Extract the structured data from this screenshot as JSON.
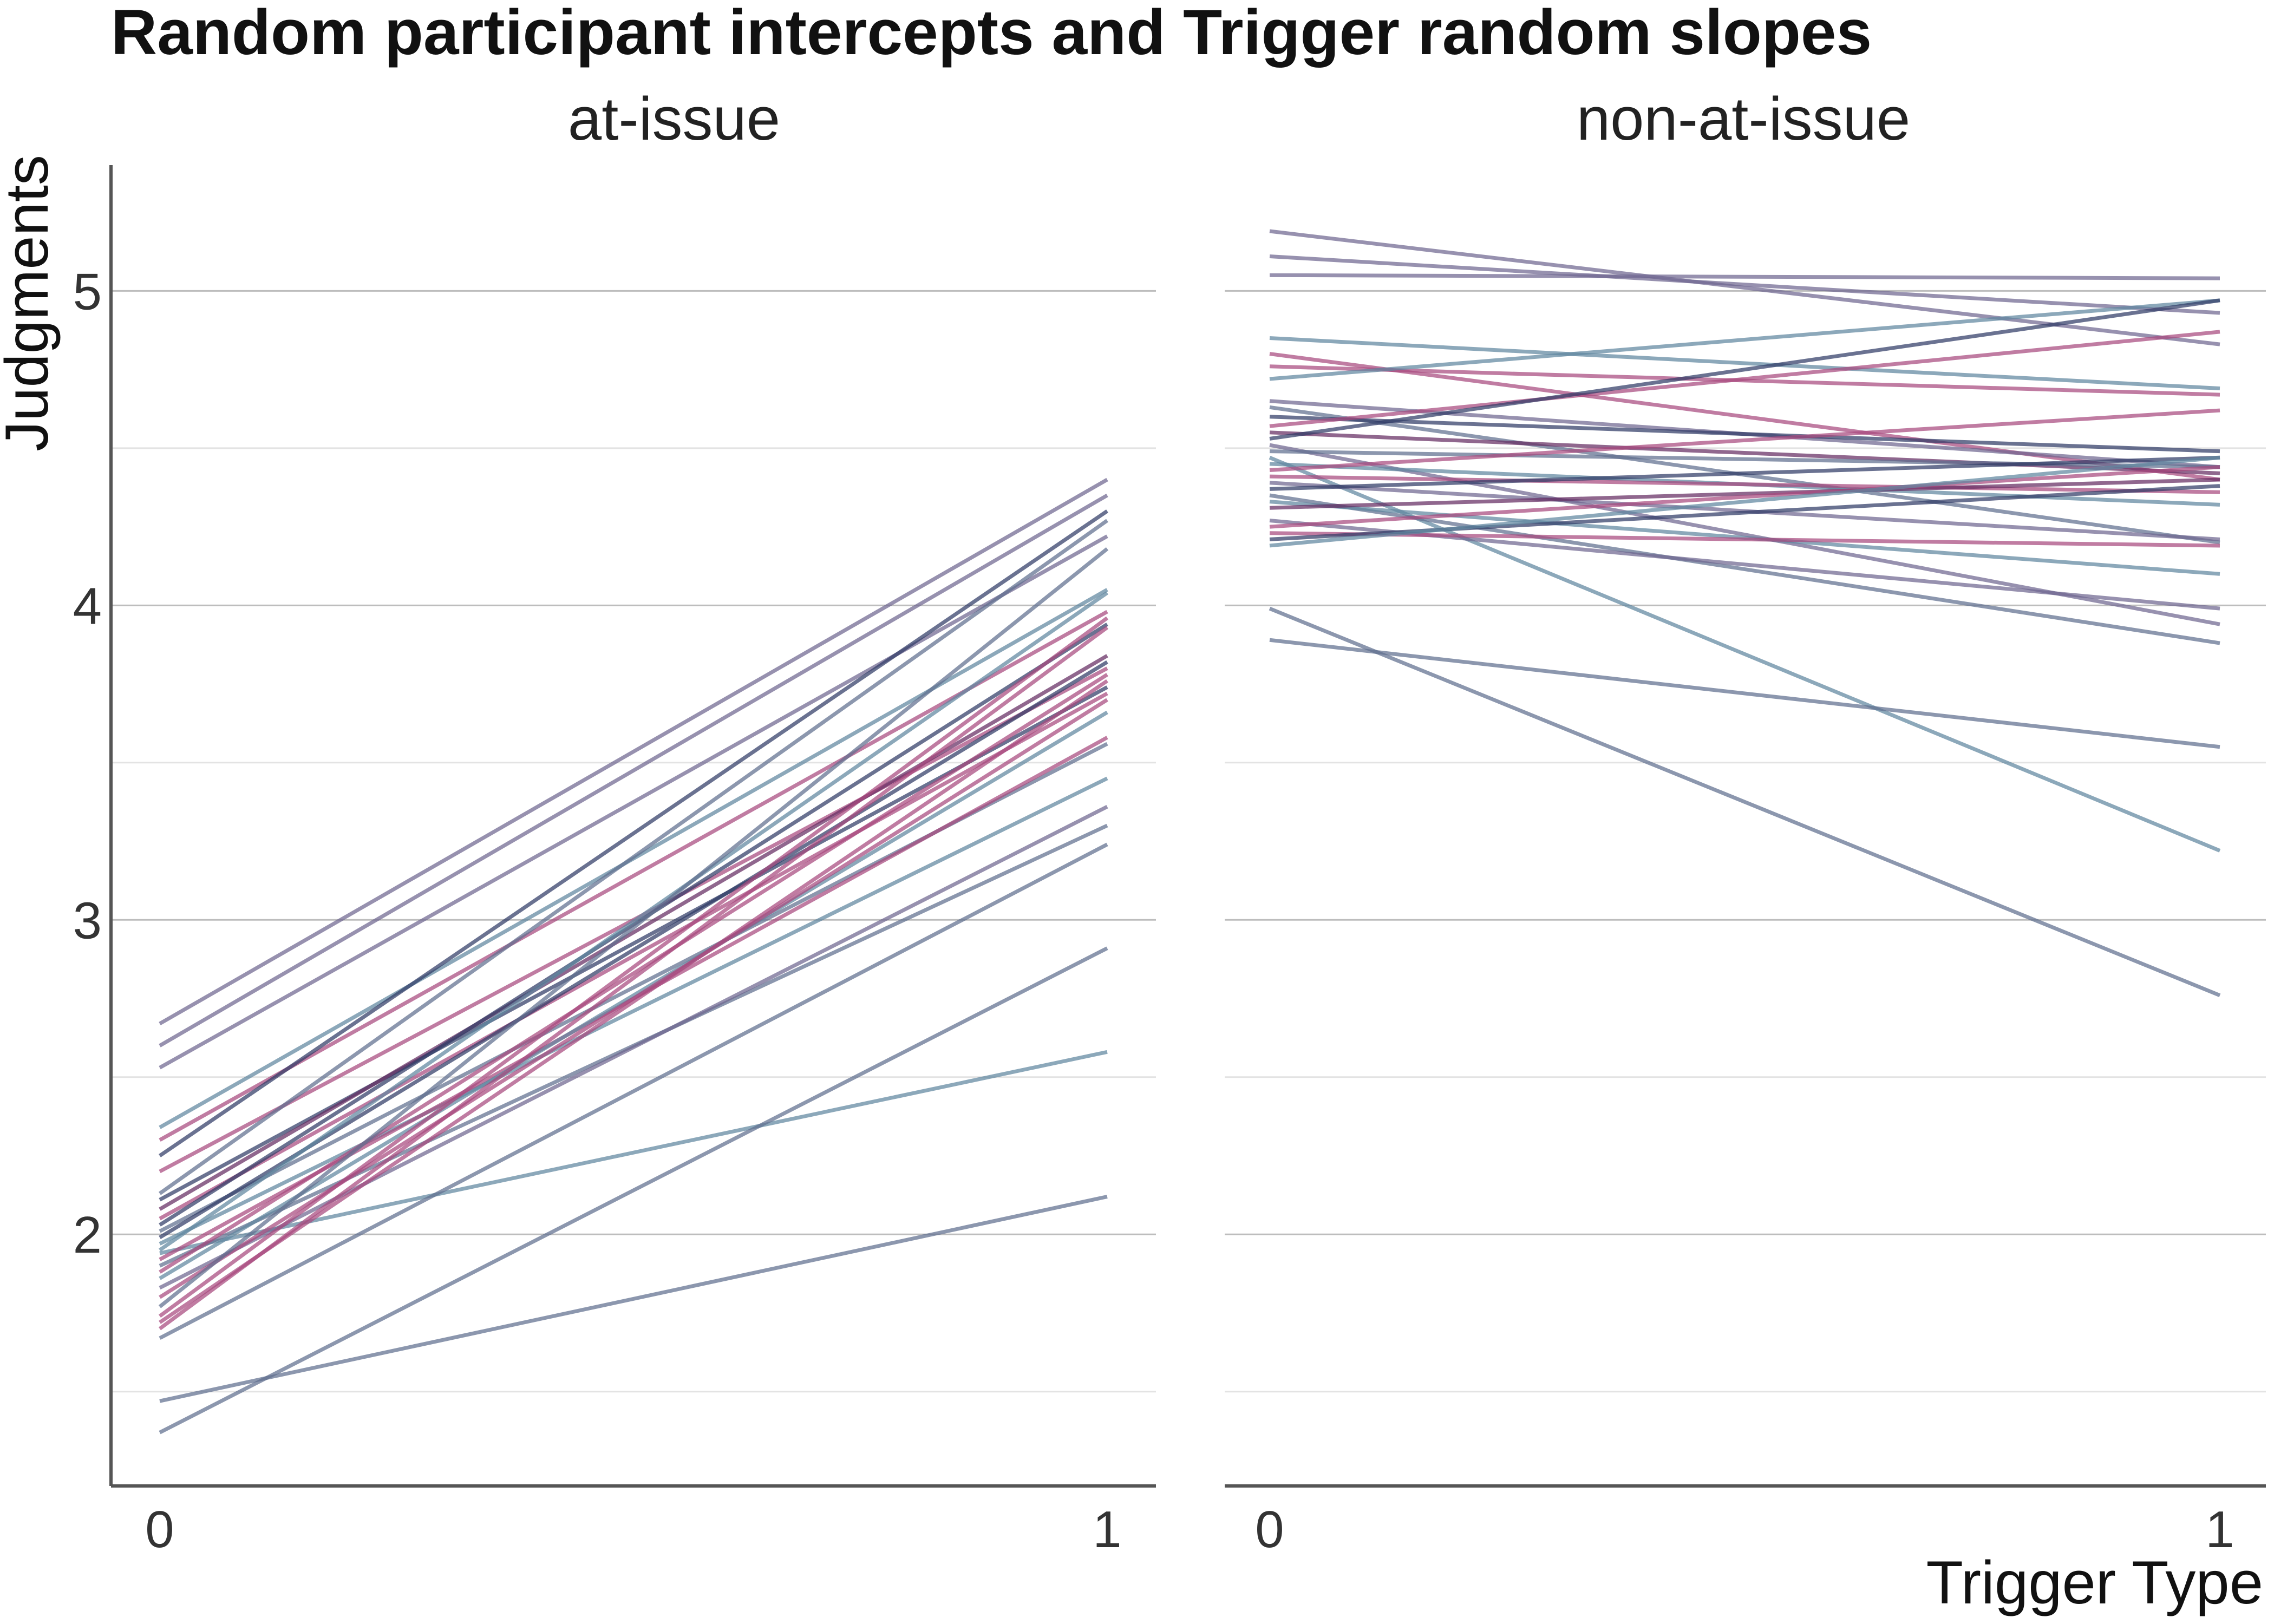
{
  "chart_data": {
    "type": "line",
    "title": "Random participant intercepts and Trigger random slopes",
    "xlabel": "Trigger Type",
    "ylabel": "Judgments",
    "x": [
      0,
      1
    ],
    "x_tick_labels": [
      "0",
      "1"
    ],
    "ylim": [
      1.2,
      5.4
    ],
    "y_ticks": [
      2,
      3,
      4,
      5
    ],
    "y_tick_labels": [
      "2",
      "3",
      "4",
      "5"
    ],
    "grid": true,
    "legend": "none",
    "colors": {
      "blue": "#5f86a0",
      "slate": "#5f6f8f",
      "purple": "#6f6690",
      "magenta": "#a8497e",
      "navy": "#303c66",
      "plum": "#652c63"
    },
    "panels": [
      {
        "label": "at-issue",
        "series": [
          {
            "values": [
              2.67,
              4.4
            ],
            "color": "purple"
          },
          {
            "values": [
              2.6,
              4.35
            ],
            "color": "purple"
          },
          {
            "values": [
              2.53,
              4.22
            ],
            "color": "purple"
          },
          {
            "values": [
              2.34,
              4.05
            ],
            "color": "blue"
          },
          {
            "values": [
              2.3,
              3.98
            ],
            "color": "magenta"
          },
          {
            "values": [
              2.25,
              4.3
            ],
            "color": "navy"
          },
          {
            "values": [
              2.2,
              3.8
            ],
            "color": "magenta"
          },
          {
            "values": [
              2.13,
              4.27
            ],
            "color": "slate"
          },
          {
            "values": [
              2.11,
              3.74
            ],
            "color": "navy"
          },
          {
            "values": [
              2.08,
              3.84
            ],
            "color": "plum"
          },
          {
            "values": [
              2.05,
              3.72
            ],
            "color": "magenta"
          },
          {
            "values": [
              2.03,
              3.94
            ],
            "color": "navy"
          },
          {
            "values": [
              2.01,
              3.56
            ],
            "color": "slate"
          },
          {
            "values": [
              1.99,
              3.82
            ],
            "color": "navy"
          },
          {
            "values": [
              1.97,
              3.45
            ],
            "color": "blue"
          },
          {
            "values": [
              1.95,
              4.04
            ],
            "color": "blue"
          },
          {
            "values": [
              1.94,
              2.58
            ],
            "color": "blue"
          },
          {
            "values": [
              1.92,
              3.58
            ],
            "color": "magenta"
          },
          {
            "values": [
              1.9,
              3.3
            ],
            "color": "slate"
          },
          {
            "values": [
              1.88,
              3.78
            ],
            "color": "magenta"
          },
          {
            "values": [
              1.86,
              3.66
            ],
            "color": "blue"
          },
          {
            "values": [
              1.83,
              3.36
            ],
            "color": "purple"
          },
          {
            "values": [
              1.8,
              3.7
            ],
            "color": "magenta"
          },
          {
            "values": [
              1.77,
              4.18
            ],
            "color": "slate"
          },
          {
            "values": [
              1.74,
              3.96
            ],
            "color": "magenta"
          },
          {
            "values": [
              1.72,
              3.76
            ],
            "color": "magenta"
          },
          {
            "values": [
              1.7,
              3.93
            ],
            "color": "magenta"
          },
          {
            "values": [
              1.67,
              3.24
            ],
            "color": "slate"
          },
          {
            "values": [
              1.47,
              2.12
            ],
            "color": "slate"
          },
          {
            "values": [
              1.37,
              2.91
            ],
            "color": "slate"
          }
        ]
      },
      {
        "label": "non-at-issue",
        "series": [
          {
            "values": [
              5.19,
              4.83
            ],
            "color": "purple"
          },
          {
            "values": [
              5.11,
              4.93
            ],
            "color": "purple"
          },
          {
            "values": [
              5.05,
              5.04
            ],
            "color": "purple"
          },
          {
            "values": [
              4.85,
              4.69
            ],
            "color": "blue"
          },
          {
            "values": [
              4.8,
              4.4
            ],
            "color": "magenta"
          },
          {
            "values": [
              4.76,
              4.67
            ],
            "color": "magenta"
          },
          {
            "values": [
              4.72,
              4.97
            ],
            "color": "blue"
          },
          {
            "values": [
              4.65,
              4.44
            ],
            "color": "purple"
          },
          {
            "values": [
              4.63,
              4.2
            ],
            "color": "slate"
          },
          {
            "values": [
              4.6,
              4.49
            ],
            "color": "navy"
          },
          {
            "values": [
              4.57,
              4.87
            ],
            "color": "magenta"
          },
          {
            "values": [
              4.55,
              4.42
            ],
            "color": "plum"
          },
          {
            "values": [
              4.53,
              4.97
            ],
            "color": "navy"
          },
          {
            "values": [
              4.51,
              3.94
            ],
            "color": "purple"
          },
          {
            "values": [
              4.49,
              4.44
            ],
            "color": "slate"
          },
          {
            "values": [
              4.47,
              3.22
            ],
            "color": "blue"
          },
          {
            "values": [
              4.45,
              4.32
            ],
            "color": "blue"
          },
          {
            "values": [
              4.43,
              4.62
            ],
            "color": "magenta"
          },
          {
            "values": [
              4.41,
              4.36
            ],
            "color": "magenta"
          },
          {
            "values": [
              4.39,
              4.21
            ],
            "color": "purple"
          },
          {
            "values": [
              4.37,
              4.47
            ],
            "color": "navy"
          },
          {
            "values": [
              4.35,
              3.88
            ],
            "color": "slate"
          },
          {
            "values": [
              4.33,
              4.1
            ],
            "color": "blue"
          },
          {
            "values": [
              4.31,
              4.4
            ],
            "color": "plum"
          },
          {
            "values": [
              4.27,
              3.99
            ],
            "color": "purple"
          },
          {
            "values": [
              4.25,
              4.44
            ],
            "color": "magenta"
          },
          {
            "values": [
              4.23,
              4.19
            ],
            "color": "magenta"
          },
          {
            "values": [
              4.21,
              4.38
            ],
            "color": "navy"
          },
          {
            "values": [
              4.19,
              4.47
            ],
            "color": "blue"
          },
          {
            "values": [
              3.99,
              2.76
            ],
            "color": "slate"
          },
          {
            "values": [
              3.89,
              3.55
            ],
            "color": "slate"
          }
        ]
      }
    ]
  }
}
